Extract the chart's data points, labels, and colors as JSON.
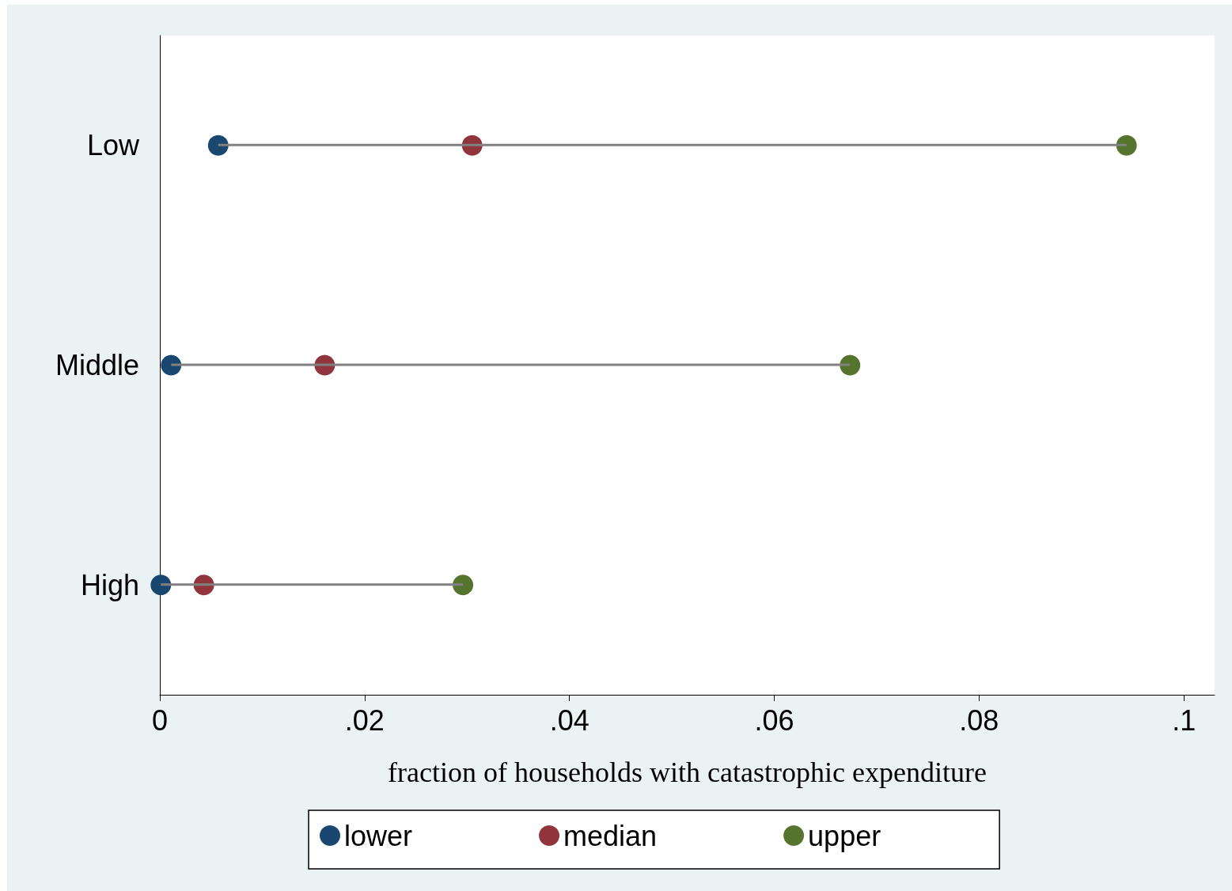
{
  "chart_data": {
    "type": "scatter",
    "orientation": "horizontal",
    "xlabel": "fraction of households with catastrophic expenditure",
    "categories": [
      "Low",
      "Middle",
      "High"
    ],
    "xlim": [
      0,
      0.103
    ],
    "xticks": [
      0,
      {
        "value": 0.02,
        "label": ".02"
      },
      {
        "value": 0.04,
        "label": ".04"
      },
      {
        "value": 0.06,
        "label": ".06"
      },
      {
        "value": 0.08,
        "label": ".08"
      },
      {
        "value": 0.1,
        "label": ".1"
      }
    ],
    "series": [
      {
        "type": "bar",
        "color": "#808080",
        "base": [
          0.0057,
          0.0011,
          0.0001
        ],
        "values": [
          0.0887,
          0.0663,
          0.0295
        ]
      },
      {
        "name": "lower",
        "color": "#1a476f",
        "values": [
          0.0057,
          0.0011,
          0.0001
        ]
      },
      {
        "name": "median",
        "color": "#90353b",
        "values": [
          0.0305,
          0.0161,
          0.0043
        ]
      },
      {
        "name": "upper",
        "color": "#55752f",
        "values": [
          0.0944,
          0.0674,
          0.0296
        ]
      }
    ],
    "marker": "circle",
    "grid": false,
    "legend": "bottom"
  }
}
